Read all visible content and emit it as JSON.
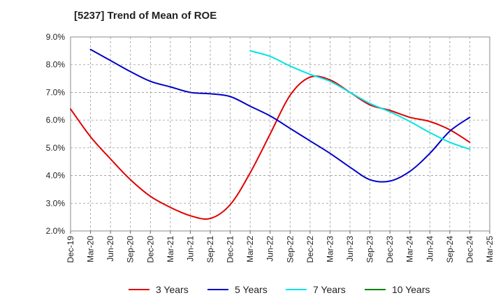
{
  "chart_data": {
    "type": "line",
    "title": "[5237]  Trend of Mean of ROE",
    "xlabel": "",
    "ylabel": "",
    "x_ticks": [
      "Dec-19",
      "Mar-20",
      "Jun-20",
      "Sep-20",
      "Dec-20",
      "Mar-21",
      "Jun-21",
      "Sep-21",
      "Dec-21",
      "Mar-22",
      "Jun-22",
      "Sep-22",
      "Dec-22",
      "Mar-23",
      "Jun-23",
      "Sep-23",
      "Dec-23",
      "Mar-24",
      "Jun-24",
      "Sep-24",
      "Dec-24",
      "Mar-25"
    ],
    "y_ticks": [
      "2.0%",
      "3.0%",
      "4.0%",
      "5.0%",
      "6.0%",
      "7.0%",
      "8.0%",
      "9.0%"
    ],
    "ylim": [
      2.0,
      9.0
    ],
    "grid": "dashed",
    "legend_position": "bottom",
    "series": [
      {
        "name": "3 Years",
        "color": "#e00000",
        "x": [
          "Dec-19",
          "Mar-20",
          "Jun-20",
          "Sep-20",
          "Dec-20",
          "Mar-21",
          "Jun-21",
          "Sep-21",
          "Dec-21",
          "Mar-22",
          "Jun-22",
          "Sep-22",
          "Dec-22",
          "Mar-23",
          "Jun-23",
          "Sep-23",
          "Dec-23",
          "Mar-24",
          "Jun-24",
          "Sep-24",
          "Dec-24"
        ],
        "values": [
          6.4,
          5.4,
          4.6,
          3.85,
          3.25,
          2.85,
          2.55,
          2.45,
          2.95,
          4.1,
          5.5,
          6.9,
          7.55,
          7.45,
          7.0,
          6.55,
          6.35,
          6.1,
          5.95,
          5.65,
          5.2
        ]
      },
      {
        "name": "5 Years",
        "color": "#0000c8",
        "x": [
          "Mar-20",
          "Jun-20",
          "Sep-20",
          "Dec-20",
          "Mar-21",
          "Jun-21",
          "Sep-21",
          "Dec-21",
          "Mar-22",
          "Jun-22",
          "Sep-22",
          "Dec-22",
          "Mar-23",
          "Jun-23",
          "Sep-23",
          "Dec-23",
          "Mar-24",
          "Jun-24",
          "Sep-24",
          "Dec-24"
        ],
        "values": [
          8.55,
          8.15,
          7.75,
          7.4,
          7.2,
          7.0,
          6.95,
          6.85,
          6.5,
          6.15,
          5.7,
          5.25,
          4.8,
          4.3,
          3.85,
          3.8,
          4.15,
          4.8,
          5.6,
          6.1
        ]
      },
      {
        "name": "7 Years",
        "color": "#00e5e5",
        "x": [
          "Mar-22",
          "Jun-22",
          "Sep-22",
          "Dec-22",
          "Mar-23",
          "Jun-23",
          "Sep-23",
          "Dec-23",
          "Mar-24",
          "Jun-24",
          "Sep-24",
          "Dec-24"
        ],
        "values": [
          8.5,
          8.3,
          7.95,
          7.65,
          7.4,
          7.0,
          6.6,
          6.3,
          5.95,
          5.55,
          5.2,
          4.95
        ]
      },
      {
        "name": "10 Years",
        "color": "#008000",
        "x": [],
        "values": []
      }
    ]
  }
}
